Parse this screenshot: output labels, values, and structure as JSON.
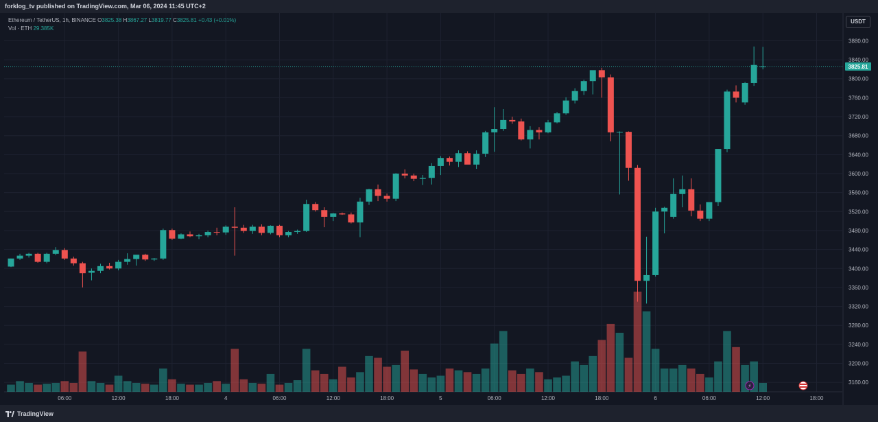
{
  "header": {
    "publisher_line": "forklog_tv published on TradingView.com, Mar 06, 2024 11:45 UTC+2"
  },
  "legend": {
    "symbol": "Ethereum / TetherUS, 1h, BINANCE",
    "o_label": "O",
    "o_value": "3825.38",
    "h_label": "H",
    "h_value": "3867.27",
    "l_label": "L",
    "l_value": "3819.77",
    "c_label": "C",
    "c_value": "3825.81",
    "change": "+0.43 (+0.01%)",
    "vol_label": "Vol · ETH",
    "vol_value": "29.385K"
  },
  "currency_button": "USDT",
  "footer": {
    "brand": "TradingView"
  },
  "colors": {
    "up": "#26a69a",
    "down": "#ef5350",
    "background": "#131722",
    "grid": "#1e2230"
  },
  "chart_data": {
    "type": "candlestick",
    "title": "",
    "interval": "1h",
    "y_ticks": [
      3160,
      3200,
      3240,
      3280,
      3320,
      3360,
      3400,
      3440,
      3480,
      3520,
      3560,
      3600,
      3640,
      3680,
      3720,
      3760,
      3800,
      3840,
      3880
    ],
    "ylim": [
      3140,
      3898
    ],
    "last_price": "3825.81",
    "x_labels": [
      "06:00",
      "12:00",
      "18:00",
      "4",
      "06:00",
      "12:00",
      "18:00",
      "5",
      "06:00",
      "12:00",
      "18:00",
      "6",
      "06:00",
      "12:00",
      "18:00"
    ],
    "x_label_positions": [
      6,
      12,
      18,
      24,
      30,
      36,
      42,
      48,
      54,
      60,
      66,
      72,
      78,
      84,
      90
    ],
    "candles": [
      {
        "o": 3404,
        "h": 3421,
        "l": 3403,
        "c": 3421
      },
      {
        "o": 3421,
        "h": 3431,
        "l": 3418,
        "c": 3427
      },
      {
        "o": 3427,
        "h": 3433,
        "l": 3423,
        "c": 3431
      },
      {
        "o": 3431,
        "h": 3433,
        "l": 3412,
        "c": 3414
      },
      {
        "o": 3414,
        "h": 3433,
        "l": 3411,
        "c": 3431
      },
      {
        "o": 3431,
        "h": 3445,
        "l": 3428,
        "c": 3439
      },
      {
        "o": 3439,
        "h": 3443,
        "l": 3418,
        "c": 3421
      },
      {
        "o": 3421,
        "h": 3425,
        "l": 3406,
        "c": 3411
      },
      {
        "o": 3411,
        "h": 3414,
        "l": 3360,
        "c": 3390
      },
      {
        "o": 3391,
        "h": 3400,
        "l": 3375,
        "c": 3395
      },
      {
        "o": 3395,
        "h": 3410,
        "l": 3390,
        "c": 3405
      },
      {
        "o": 3405,
        "h": 3412,
        "l": 3398,
        "c": 3400
      },
      {
        "o": 3400,
        "h": 3418,
        "l": 3396,
        "c": 3414
      },
      {
        "o": 3414,
        "h": 3432,
        "l": 3408,
        "c": 3420
      },
      {
        "o": 3420,
        "h": 3428,
        "l": 3406,
        "c": 3429
      },
      {
        "o": 3429,
        "h": 3431,
        "l": 3416,
        "c": 3419
      },
      {
        "o": 3419,
        "h": 3422,
        "l": 3416,
        "c": 3421
      },
      {
        "o": 3421,
        "h": 3484,
        "l": 3418,
        "c": 3481
      },
      {
        "o": 3481,
        "h": 3484,
        "l": 3460,
        "c": 3463
      },
      {
        "o": 3463,
        "h": 3474,
        "l": 3462,
        "c": 3472
      },
      {
        "o": 3472,
        "h": 3478,
        "l": 3466,
        "c": 3468
      },
      {
        "o": 3468,
        "h": 3473,
        "l": 3462,
        "c": 3470
      },
      {
        "o": 3470,
        "h": 3480,
        "l": 3466,
        "c": 3477
      },
      {
        "o": 3477,
        "h": 3486,
        "l": 3470,
        "c": 3476
      },
      {
        "o": 3476,
        "h": 3491,
        "l": 3471,
        "c": 3488
      },
      {
        "o": 3488,
        "h": 3529,
        "l": 3427,
        "c": 3486
      },
      {
        "o": 3486,
        "h": 3492,
        "l": 3475,
        "c": 3479
      },
      {
        "o": 3479,
        "h": 3492,
        "l": 3473,
        "c": 3488
      },
      {
        "o": 3488,
        "h": 3493,
        "l": 3470,
        "c": 3475
      },
      {
        "o": 3475,
        "h": 3491,
        "l": 3472,
        "c": 3490
      },
      {
        "o": 3490,
        "h": 3492,
        "l": 3466,
        "c": 3470
      },
      {
        "o": 3470,
        "h": 3479,
        "l": 3466,
        "c": 3477
      },
      {
        "o": 3477,
        "h": 3482,
        "l": 3473,
        "c": 3479
      },
      {
        "o": 3479,
        "h": 3545,
        "l": 3477,
        "c": 3536
      },
      {
        "o": 3536,
        "h": 3540,
        "l": 3520,
        "c": 3523
      },
      {
        "o": 3523,
        "h": 3529,
        "l": 3487,
        "c": 3509
      },
      {
        "o": 3509,
        "h": 3517,
        "l": 3500,
        "c": 3516
      },
      {
        "o": 3516,
        "h": 3518,
        "l": 3513,
        "c": 3514
      },
      {
        "o": 3514,
        "h": 3518,
        "l": 3495,
        "c": 3497
      },
      {
        "o": 3497,
        "h": 3549,
        "l": 3466,
        "c": 3541
      },
      {
        "o": 3541,
        "h": 3568,
        "l": 3534,
        "c": 3567
      },
      {
        "o": 3567,
        "h": 3577,
        "l": 3542,
        "c": 3553
      },
      {
        "o": 3553,
        "h": 3558,
        "l": 3541,
        "c": 3547
      },
      {
        "o": 3547,
        "h": 3601,
        "l": 3542,
        "c": 3600
      },
      {
        "o": 3600,
        "h": 3609,
        "l": 3590,
        "c": 3596
      },
      {
        "o": 3596,
        "h": 3600,
        "l": 3584,
        "c": 3589
      },
      {
        "o": 3589,
        "h": 3597,
        "l": 3576,
        "c": 3591
      },
      {
        "o": 3591,
        "h": 3622,
        "l": 3577,
        "c": 3616
      },
      {
        "o": 3616,
        "h": 3637,
        "l": 3597,
        "c": 3633
      },
      {
        "o": 3633,
        "h": 3636,
        "l": 3617,
        "c": 3625
      },
      {
        "o": 3625,
        "h": 3649,
        "l": 3614,
        "c": 3643
      },
      {
        "o": 3643,
        "h": 3647,
        "l": 3620,
        "c": 3619
      },
      {
        "o": 3619,
        "h": 3649,
        "l": 3610,
        "c": 3642
      },
      {
        "o": 3642,
        "h": 3690,
        "l": 3635,
        "c": 3687
      },
      {
        "o": 3687,
        "h": 3740,
        "l": 3646,
        "c": 3694
      },
      {
        "o": 3694,
        "h": 3736,
        "l": 3690,
        "c": 3713
      },
      {
        "o": 3713,
        "h": 3720,
        "l": 3705,
        "c": 3710
      },
      {
        "o": 3710,
        "h": 3716,
        "l": 3670,
        "c": 3672
      },
      {
        "o": 3672,
        "h": 3700,
        "l": 3653,
        "c": 3692
      },
      {
        "o": 3692,
        "h": 3698,
        "l": 3672,
        "c": 3687
      },
      {
        "o": 3687,
        "h": 3713,
        "l": 3685,
        "c": 3708
      },
      {
        "o": 3708,
        "h": 3730,
        "l": 3706,
        "c": 3727
      },
      {
        "o": 3727,
        "h": 3761,
        "l": 3724,
        "c": 3754
      },
      {
        "o": 3754,
        "h": 3780,
        "l": 3748,
        "c": 3774
      },
      {
        "o": 3774,
        "h": 3798,
        "l": 3766,
        "c": 3795
      },
      {
        "o": 3795,
        "h": 3817,
        "l": 3767,
        "c": 3818
      },
      {
        "o": 3818,
        "h": 3823,
        "l": 3760,
        "c": 3803
      },
      {
        "o": 3803,
        "h": 3809,
        "l": 3668,
        "c": 3687
      },
      {
        "o": 3687,
        "h": 3689,
        "l": 3556,
        "c": 3688
      },
      {
        "o": 3688,
        "h": 3689,
        "l": 3585,
        "c": 3612
      },
      {
        "o": 3612,
        "h": 3618,
        "l": 3330,
        "c": 3374
      },
      {
        "o": 3374,
        "h": 3467,
        "l": 3326,
        "c": 3386
      },
      {
        "o": 3386,
        "h": 3528,
        "l": 3383,
        "c": 3520
      },
      {
        "o": 3520,
        "h": 3530,
        "l": 3474,
        "c": 3528
      },
      {
        "o": 3509,
        "h": 3590,
        "l": 3505,
        "c": 3557
      },
      {
        "o": 3557,
        "h": 3596,
        "l": 3529,
        "c": 3567
      },
      {
        "o": 3567,
        "h": 3590,
        "l": 3510,
        "c": 3522
      },
      {
        "o": 3522,
        "h": 3535,
        "l": 3500,
        "c": 3505
      },
      {
        "o": 3505,
        "h": 3540,
        "l": 3500,
        "c": 3540
      },
      {
        "o": 3540,
        "h": 3652,
        "l": 3532,
        "c": 3652
      },
      {
        "o": 3652,
        "h": 3777,
        "l": 3645,
        "c": 3773
      },
      {
        "o": 3773,
        "h": 3786,
        "l": 3750,
        "c": 3760
      },
      {
        "o": 3750,
        "h": 3793,
        "l": 3745,
        "c": 3791
      },
      {
        "o": 3791,
        "h": 3868,
        "l": 3785,
        "c": 3829
      },
      {
        "o": 3825.38,
        "h": 3867.27,
        "l": 3819.77,
        "c": 3825.81
      }
    ],
    "volume_series": "Vol · ETH",
    "volume": [
      8,
      12,
      10,
      8,
      9,
      10,
      12,
      10,
      45,
      12,
      10,
      8,
      18,
      12,
      10,
      9,
      8,
      26,
      14,
      9,
      8,
      8,
      10,
      12,
      9,
      48,
      14,
      10,
      9,
      20,
      8,
      10,
      13,
      48,
      24,
      20,
      14,
      28,
      16,
      22,
      40,
      38,
      28,
      30,
      46,
      25,
      20,
      16,
      18,
      26,
      24,
      22,
      20,
      26,
      54,
      68,
      24,
      20,
      26,
      22,
      14,
      16,
      18,
      34,
      30,
      40,
      58,
      76,
      66,
      38,
      112,
      90,
      48,
      26,
      26,
      30,
      26,
      20,
      16,
      34,
      68,
      50,
      30,
      34,
      10
    ]
  }
}
